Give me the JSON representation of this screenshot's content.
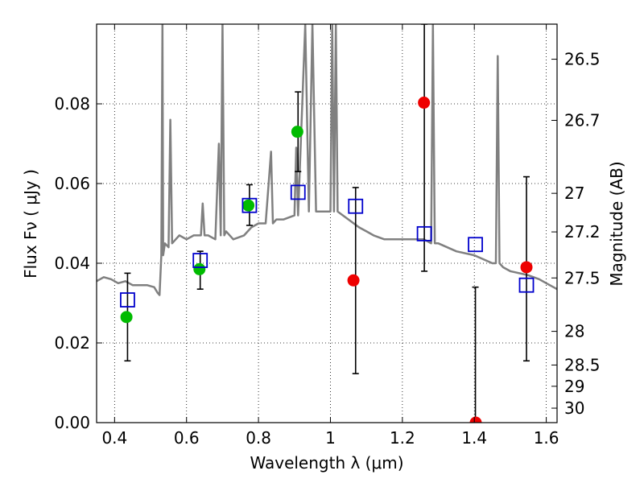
{
  "chart_data": {
    "type": "scatter",
    "title": "",
    "xlabel": "Wavelength  λ (μm)",
    "ylabel": "Flux  Fν  ( μJy )",
    "ylabel_right": "Magnitude (AB)",
    "xlim": [
      0.35,
      1.63
    ],
    "ylim": [
      0.0,
      0.1
    ],
    "grid": true,
    "x_ticks": [
      0.4,
      0.6,
      0.8,
      1.0,
      1.2,
      1.4,
      1.6
    ],
    "x_tick_labels": [
      "0.4",
      "0.6",
      "0.8",
      "1",
      "1.2",
      "1.4",
      "1.6"
    ],
    "y_ticks": [
      0.0,
      0.02,
      0.04,
      0.06,
      0.08
    ],
    "y_tick_labels": [
      "0.00",
      "0.02",
      "0.04",
      "0.06",
      "0.08"
    ],
    "right_ticks": [
      26.5,
      26.7,
      27,
      27.2,
      27.5,
      28,
      28.5,
      29,
      30
    ],
    "right_tick_labels": [
      "26.5",
      "26.7",
      "27",
      "27.2",
      "27.5",
      "28",
      "28.5",
      "29",
      "30"
    ],
    "colors": {
      "template": "#808080",
      "green": "#00bb00",
      "red": "#ee0000",
      "square": "#0000cc",
      "errorbar": "#000000"
    },
    "series": [
      {
        "kind": "line",
        "x": [
          0.35,
          0.37,
          0.39,
          0.41,
          0.43,
          0.45,
          0.47,
          0.49,
          0.51,
          0.52,
          0.525,
          0.53,
          0.533,
          0.535,
          0.54,
          0.55,
          0.555,
          0.56,
          0.57,
          0.58,
          0.6,
          0.62,
          0.64,
          0.645,
          0.65,
          0.66,
          0.68,
          0.69,
          0.695,
          0.7,
          0.705,
          0.71,
          0.73,
          0.76,
          0.78,
          0.8,
          0.82,
          0.835,
          0.84,
          0.85,
          0.87,
          0.9,
          0.905,
          0.91,
          0.93,
          0.94,
          0.95,
          0.96,
          0.98,
          1.0,
          1.005,
          1.01,
          1.015,
          1.02,
          1.05,
          1.08,
          1.1,
          1.12,
          1.15,
          1.2,
          1.24,
          1.26,
          1.28,
          1.285,
          1.29,
          1.3,
          1.35,
          1.4,
          1.45,
          1.46,
          1.465,
          1.47,
          1.48,
          1.5,
          1.55,
          1.58,
          1.6,
          1.63
        ],
        "y": [
          0.0355,
          0.0365,
          0.036,
          0.035,
          0.0355,
          0.0345,
          0.0345,
          0.0345,
          0.034,
          0.0325,
          0.032,
          0.042,
          0.1,
          0.042,
          0.045,
          0.044,
          0.076,
          0.045,
          0.046,
          0.047,
          0.046,
          0.047,
          0.047,
          0.055,
          0.047,
          0.047,
          0.046,
          0.07,
          0.047,
          0.1,
          0.047,
          0.048,
          0.046,
          0.047,
          0.049,
          0.05,
          0.05,
          0.068,
          0.05,
          0.051,
          0.051,
          0.052,
          0.069,
          0.052,
          0.1,
          0.053,
          0.1,
          0.053,
          0.053,
          0.053,
          0.1,
          0.053,
          0.1,
          0.053,
          0.051,
          0.049,
          0.048,
          0.047,
          0.046,
          0.046,
          0.046,
          0.046,
          0.045,
          0.1,
          0.045,
          0.045,
          0.043,
          0.042,
          0.04,
          0.04,
          0.092,
          0.04,
          0.039,
          0.038,
          0.037,
          0.036,
          0.035,
          0.0335
        ]
      },
      {
        "kind": "points_green",
        "x": [
          0.433,
          0.636,
          0.772,
          0.908
        ],
        "y": [
          0.0265,
          0.0385,
          0.0545,
          0.073
        ]
      },
      {
        "kind": "points_red",
        "x": [
          1.064,
          1.26,
          1.404,
          1.545
        ],
        "y": [
          0.0357,
          0.0803,
          0.0,
          0.039
        ]
      },
      {
        "kind": "squares",
        "x": [
          0.436,
          0.638,
          0.775,
          0.91,
          1.07,
          1.261,
          1.403,
          1.545
        ],
        "y": [
          0.0308,
          0.0407,
          0.0545,
          0.0578,
          0.0543,
          0.0474,
          0.0447,
          0.0345
        ]
      },
      {
        "kind": "errorbars",
        "x": [
          0.436,
          0.638,
          0.775,
          0.91,
          1.07,
          1.261,
          1.403,
          1.545
        ],
        "lo": [
          0.0155,
          0.0335,
          0.0495,
          0.063,
          0.0123,
          0.038,
          -0.0001,
          0.0155
        ],
        "hi": [
          0.0375,
          0.043,
          0.0597,
          0.083,
          0.059,
          0.1,
          0.034,
          0.0617
        ]
      }
    ]
  }
}
